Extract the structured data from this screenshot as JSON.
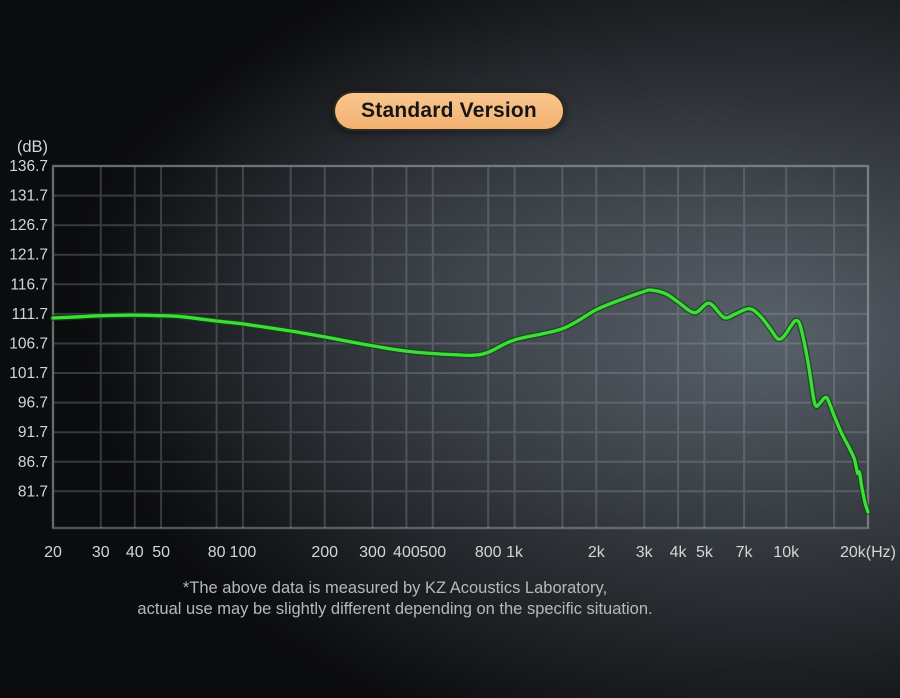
{
  "badge": {
    "label": "Standard Version",
    "bg_color": "#f6bb7f",
    "text_color": "#161616"
  },
  "footnote": {
    "line1": "*The above data is measured by KZ Acoustics Laboratory,",
    "line2": "actual use may be slightly different depending on the specific situation."
  },
  "chart_data": {
    "type": "line",
    "title": "Standard Version",
    "x_scale": "log",
    "xlim": [
      20,
      20000
    ],
    "ylim": [
      75.5,
      136.7
    ],
    "y_axis_unit": "(dB)",
    "x_axis_unit": "(Hz)",
    "grid": true,
    "legend": "none",
    "y_ticks": [
      136.7,
      131.7,
      126.7,
      121.7,
      116.7,
      111.7,
      106.7,
      101.7,
      96.7,
      91.7,
      86.7,
      81.7
    ],
    "x_ticks": [
      {
        "f": 20,
        "label": "20"
      },
      {
        "f": 30,
        "label": "30"
      },
      {
        "f": 40,
        "label": "40"
      },
      {
        "f": 50,
        "label": "50"
      },
      {
        "f": 80,
        "label": "80"
      },
      {
        "f": 100,
        "label": "100"
      },
      {
        "f": 200,
        "label": "200"
      },
      {
        "f": 300,
        "label": "300"
      },
      {
        "f": 400,
        "label": "400"
      },
      {
        "f": 500,
        "label": "500"
      },
      {
        "f": 800,
        "label": "800"
      },
      {
        "f": 1000,
        "label": "1k"
      },
      {
        "f": 2000,
        "label": "2k"
      },
      {
        "f": 3000,
        "label": "3k"
      },
      {
        "f": 4000,
        "label": "4k"
      },
      {
        "f": 5000,
        "label": "5k"
      },
      {
        "f": 7000,
        "label": "7k"
      },
      {
        "f": 10000,
        "label": "10k"
      },
      {
        "f": 20000,
        "label": "20k(Hz)"
      }
    ],
    "x_minor_gridlines": [
      150,
      1500,
      15000
    ],
    "line_color": "#3edd39",
    "line_halo_color": "#0e4a10",
    "grid_color": "#9aa2aa",
    "axis_text_color": "#d3d6d8",
    "series": [
      {
        "name": "frequency-response-spl",
        "points": [
          [
            20,
            111.0
          ],
          [
            25,
            111.2
          ],
          [
            30,
            111.4
          ],
          [
            40,
            111.5
          ],
          [
            50,
            111.4
          ],
          [
            60,
            111.2
          ],
          [
            80,
            110.5
          ],
          [
            100,
            110.0
          ],
          [
            150,
            108.8
          ],
          [
            200,
            107.8
          ],
          [
            300,
            106.3
          ],
          [
            400,
            105.4
          ],
          [
            500,
            105.0
          ],
          [
            600,
            104.8
          ],
          [
            700,
            104.7
          ],
          [
            800,
            105.2
          ],
          [
            1000,
            107.3
          ],
          [
            1500,
            109.2
          ],
          [
            2000,
            112.4
          ],
          [
            2500,
            114.2
          ],
          [
            3000,
            115.5
          ],
          [
            3200,
            115.7
          ],
          [
            3600,
            115.1
          ],
          [
            4000,
            113.7
          ],
          [
            4600,
            111.9
          ],
          [
            5200,
            113.5
          ],
          [
            5900,
            111.1
          ],
          [
            6500,
            111.7
          ],
          [
            7300,
            112.6
          ],
          [
            8000,
            111.4
          ],
          [
            8700,
            109.3
          ],
          [
            9300,
            107.5
          ],
          [
            9800,
            107.9
          ],
          [
            10500,
            109.9
          ],
          [
            10900,
            110.6
          ],
          [
            11300,
            109.5
          ],
          [
            12000,
            103.8
          ],
          [
            12600,
            97.5
          ],
          [
            12900,
            96.1
          ],
          [
            13300,
            96.6
          ],
          [
            14000,
            97.6
          ],
          [
            14500,
            96.3
          ],
          [
            15000,
            94.5
          ],
          [
            16000,
            91.5
          ],
          [
            17000,
            89.2
          ],
          [
            17800,
            87.2
          ],
          [
            18300,
            84.8
          ],
          [
            18600,
            84.9
          ],
          [
            19000,
            82.3
          ],
          [
            19500,
            79.8
          ],
          [
            20000,
            78.2
          ]
        ]
      }
    ]
  }
}
